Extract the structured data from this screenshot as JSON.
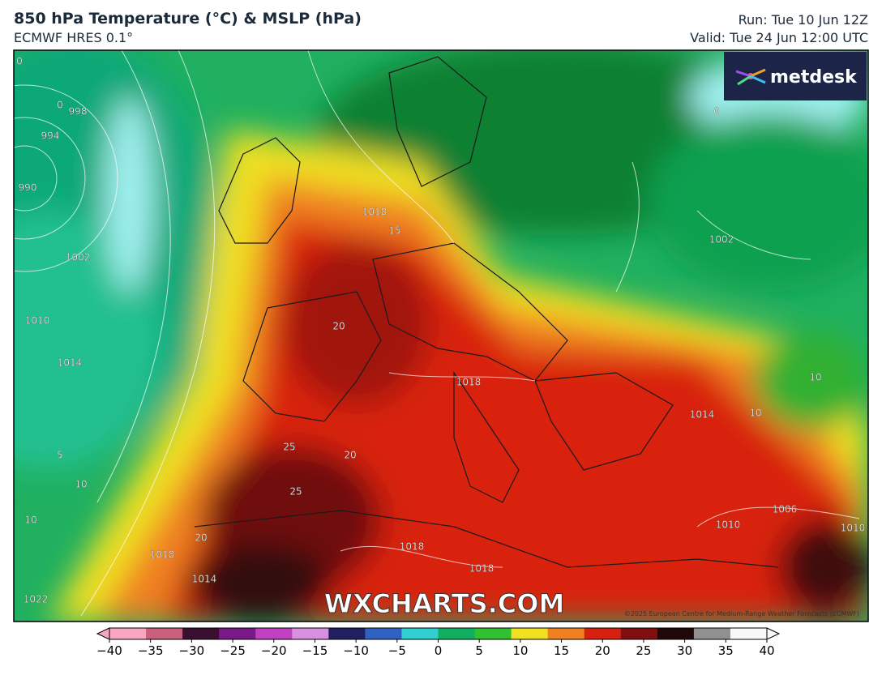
{
  "header": {
    "title": "850 hPa Temperature (°C) & MSLP (hPa)",
    "subtitle": "ECMWF HRES 0.1°",
    "run": "Run: Tue 10 Jun 12Z",
    "valid": "Valid: Tue 24 Jun 12:00 UTC"
  },
  "logo": "metdesk",
  "watermark": "WXCHARTS.COM",
  "copyright": "©2025 European Centre for Medium-Range Weather Forecasts (ECMWF)",
  "contour_labels": [
    "998",
    "994",
    "990",
    "1002",
    "1010",
    "1014",
    "1018",
    "1018",
    "1018",
    "1018",
    "1014",
    "1006",
    "1010",
    "1002",
    "1014",
    "1010",
    "1022",
    "1018",
    "15",
    "20",
    "20",
    "20",
    "25",
    "25",
    "10",
    "10",
    "10",
    "5",
    "0",
    "0",
    "0",
    "10"
  ],
  "colorbar": {
    "range": [
      -40,
      40
    ],
    "colors": [
      "#f7a8c0",
      "#c8607e",
      "#3a1030",
      "#7a1a8a",
      "#c040c0",
      "#d890e0",
      "#202060",
      "#3060c0",
      "#30d0d0",
      "#10b060",
      "#30c030",
      "#f0e020",
      "#f08020",
      "#d82010",
      "#801010",
      "#200808",
      "#909090",
      "#f8f8f8"
    ],
    "ticks": [
      {
        "value": -40,
        "label": "−40"
      },
      {
        "value": -35,
        "label": "−35"
      },
      {
        "value": -30,
        "label": "−30"
      },
      {
        "value": -25,
        "label": "−25"
      },
      {
        "value": -20,
        "label": "−20"
      },
      {
        "value": -15,
        "label": "−15"
      },
      {
        "value": -10,
        "label": "−10"
      },
      {
        "value": -5,
        "label": "−5"
      },
      0,
      5,
      10,
      15,
      20,
      25,
      30,
      35,
      40
    ]
  }
}
